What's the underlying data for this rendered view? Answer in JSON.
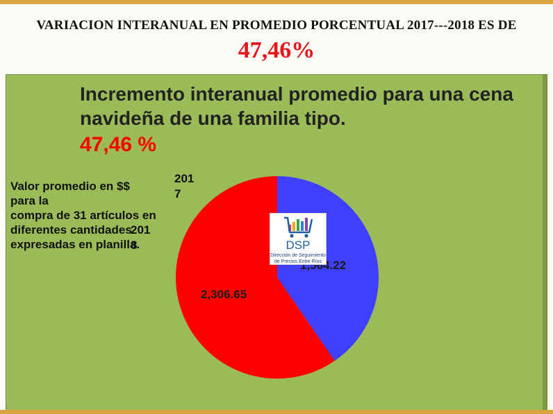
{
  "slide": {
    "title": "VARIACION INTERANUAL EN PROMEDIO PORCENTUAL 2017---2018 ES DE",
    "value": "47,46%"
  },
  "note": {
    "line1": "Valor promedio en $$",
    "line2": "para la",
    "line3": "compra de 31 artículos en",
    "line4": "diferentes cantidades",
    "line5": "expresadas en planilla."
  },
  "logo": {
    "text": "DSP",
    "caption_1": "Dirección de Seguimiento",
    "caption_2": "de Precios Entre Ríos",
    "icon": "shopping-cart-icon"
  },
  "colors": {
    "background_panel": "#9bbb59",
    "accent_red": "#ff0000",
    "accent_blue": "#3f3fff",
    "stripe": "#d9a441"
  },
  "chart_data": {
    "type": "pie",
    "title": "Incremento interanual promedio para una cena navideña de una  familia tipo.",
    "subtitle": "47,46 %",
    "categories": [
      "2017",
      "2018"
    ],
    "values": [
      1564.22,
      2306.65
    ],
    "data_labels": [
      "1,564.22",
      "2,306.65"
    ],
    "category_labels": [
      {
        "line1": "201",
        "line2": "7"
      },
      {
        "line1": "201",
        "line2": "8"
      }
    ],
    "colors": [
      "#3f3fff",
      "#ff0000"
    ]
  }
}
